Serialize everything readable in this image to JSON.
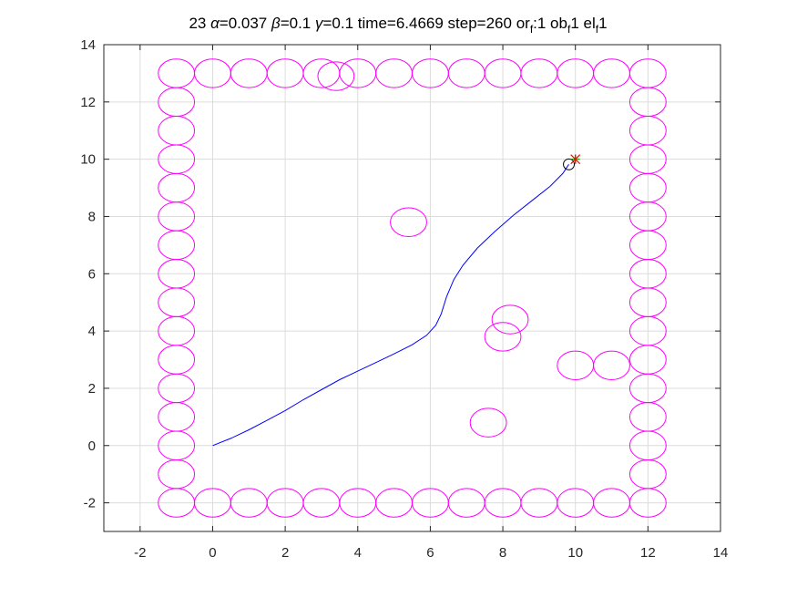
{
  "chart_data": {
    "type": "line",
    "title": {
      "prefix": "23 ",
      "alpha_symbol": "α",
      "alpha_value": "=0.037 ",
      "beta_symbol": "β",
      "beta_value": "=0.1 ",
      "gamma_symbol": "γ",
      "gamma_value": "=0.1 time=6.4669 step=260 or",
      "sub1": "f",
      "mid1": ":1 ob",
      "sub2": "f",
      "mid2": "1 el",
      "sub3": "f",
      "end": "1"
    },
    "xlim": [
      -3,
      14
    ],
    "ylim": [
      -3,
      14
    ],
    "xticks": [
      -2,
      0,
      2,
      4,
      6,
      8,
      10,
      12,
      14
    ],
    "yticks": [
      -2,
      0,
      2,
      4,
      6,
      8,
      10,
      12,
      14
    ],
    "grid": true,
    "colors": {
      "obstacle": "#ff00ff",
      "path": "#0000ff",
      "robot": "#000000",
      "goal_star": "#ff0000",
      "goal_plus": "#00aa00",
      "grid": "#dcdcdc",
      "axis": "#262626"
    },
    "obstacle_radius": {
      "rx": 0.5,
      "ry": 0.5
    },
    "obstacles": [
      [
        -1,
        13
      ],
      [
        0,
        13
      ],
      [
        1,
        13
      ],
      [
        2,
        13
      ],
      [
        3,
        13
      ],
      [
        3.4,
        12.9
      ],
      [
        4,
        13
      ],
      [
        5,
        13
      ],
      [
        6,
        13
      ],
      [
        7,
        13
      ],
      [
        8,
        13
      ],
      [
        9,
        13
      ],
      [
        10,
        13
      ],
      [
        11,
        13
      ],
      [
        12,
        13
      ],
      [
        -1,
        12
      ],
      [
        -1,
        11
      ],
      [
        -1,
        10
      ],
      [
        -1,
        9
      ],
      [
        -1,
        8
      ],
      [
        -1,
        7
      ],
      [
        -1,
        6
      ],
      [
        -1,
        5
      ],
      [
        -1,
        4
      ],
      [
        -1,
        3
      ],
      [
        -1,
        2
      ],
      [
        -1,
        1
      ],
      [
        -1,
        0
      ],
      [
        -1,
        -1
      ],
      [
        -1,
        -2
      ],
      [
        12,
        12
      ],
      [
        12,
        11
      ],
      [
        12,
        10
      ],
      [
        12,
        9
      ],
      [
        12,
        8
      ],
      [
        12,
        7
      ],
      [
        12,
        6
      ],
      [
        12,
        5
      ],
      [
        12,
        4
      ],
      [
        12,
        3
      ],
      [
        12,
        2
      ],
      [
        12,
        1
      ],
      [
        12,
        0
      ],
      [
        12,
        -1
      ],
      [
        12,
        -2
      ],
      [
        0,
        -2
      ],
      [
        1,
        -2
      ],
      [
        2,
        -2
      ],
      [
        3,
        -2
      ],
      [
        4,
        -2
      ],
      [
        5,
        -2
      ],
      [
        6,
        -2
      ],
      [
        7,
        -2
      ],
      [
        8,
        -2
      ],
      [
        9,
        -2
      ],
      [
        10,
        -2
      ],
      [
        11,
        -2
      ],
      [
        5.4,
        7.8
      ],
      [
        8.2,
        4.4
      ],
      [
        8.0,
        3.8
      ],
      [
        10.0,
        2.8
      ],
      [
        11.0,
        2.8
      ],
      [
        7.6,
        0.8
      ]
    ],
    "path": [
      [
        0,
        0
      ],
      [
        0.5,
        0.25
      ],
      [
        1,
        0.55
      ],
      [
        1.5,
        0.88
      ],
      [
        2,
        1.22
      ],
      [
        2.5,
        1.6
      ],
      [
        3,
        1.95
      ],
      [
        3.5,
        2.3
      ],
      [
        4,
        2.6
      ],
      [
        4.5,
        2.9
      ],
      [
        5,
        3.2
      ],
      [
        5.5,
        3.52
      ],
      [
        5.9,
        3.85
      ],
      [
        6.15,
        4.2
      ],
      [
        6.3,
        4.6
      ],
      [
        6.45,
        5.2
      ],
      [
        6.65,
        5.8
      ],
      [
        6.9,
        6.3
      ],
      [
        7.3,
        6.9
      ],
      [
        7.8,
        7.5
      ],
      [
        8.3,
        8.05
      ],
      [
        8.8,
        8.55
      ],
      [
        9.3,
        9.05
      ],
      [
        9.65,
        9.5
      ],
      [
        9.82,
        9.82
      ]
    ],
    "robot": [
      9.82,
      9.82
    ],
    "robot_radius": 0.15,
    "goal": [
      10,
      10
    ]
  }
}
